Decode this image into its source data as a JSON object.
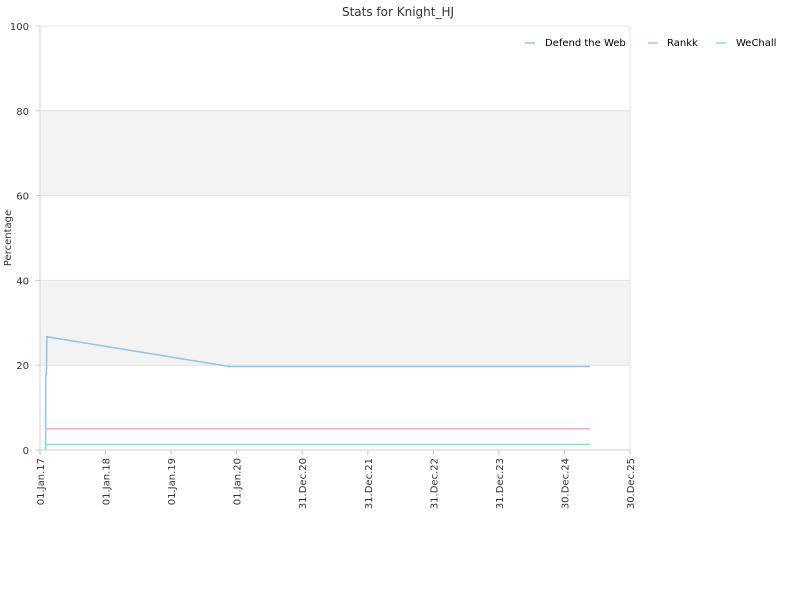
{
  "chart_data": {
    "type": "line",
    "title": "Stats for Knight_HJ",
    "xlabel": "",
    "ylabel": "Percentage",
    "ylim": [
      0,
      100
    ],
    "xlim": [
      "2017-01-01",
      "2025-12-30"
    ],
    "yticks": [
      "0",
      "20",
      "40",
      "60",
      "80",
      "100"
    ],
    "xticks": [
      {
        "date": "2017-01-01",
        "label": "01.Jan.17"
      },
      {
        "date": "2018-01-01",
        "label": "01.Jan.18"
      },
      {
        "date": "2019-01-01",
        "label": "01.Jan.19"
      },
      {
        "date": "2020-01-01",
        "label": "01.Jan.20"
      },
      {
        "date": "2020-12-31",
        "label": "31.Dec.20"
      },
      {
        "date": "2021-12-31",
        "label": "31.Dec.21"
      },
      {
        "date": "2022-12-31",
        "label": "31.Dec.22"
      },
      {
        "date": "2023-12-31",
        "label": "31.Dec.23"
      },
      {
        "date": "2024-12-30",
        "label": "30.Dec.24"
      },
      {
        "date": "2025-12-30",
        "label": "30.Dec.25"
      }
    ],
    "grid": true,
    "alternating_bands": true,
    "legend_position": "top-right",
    "series": [
      {
        "name": "Defend the Web",
        "color": "#8ec4ee",
        "points": [
          [
            "2017-02-01",
            0.5
          ],
          [
            "2017-02-02",
            17.5
          ],
          [
            "2017-02-06",
            18.0
          ],
          [
            "2017-02-08",
            26.7
          ],
          [
            "2019-11-20",
            19.7
          ],
          [
            "2025-05-15",
            19.7
          ]
        ]
      },
      {
        "name": "Rankk",
        "color": "#f4a9c0",
        "points": [
          [
            "2017-02-02",
            5.0
          ],
          [
            "2025-05-15",
            5.0
          ]
        ]
      },
      {
        "name": "WeChall",
        "color": "#86e0cf",
        "points": [
          [
            "2017-02-01",
            0.3
          ],
          [
            "2017-02-03",
            1.3
          ],
          [
            "2025-05-15",
            1.3
          ]
        ]
      }
    ]
  }
}
